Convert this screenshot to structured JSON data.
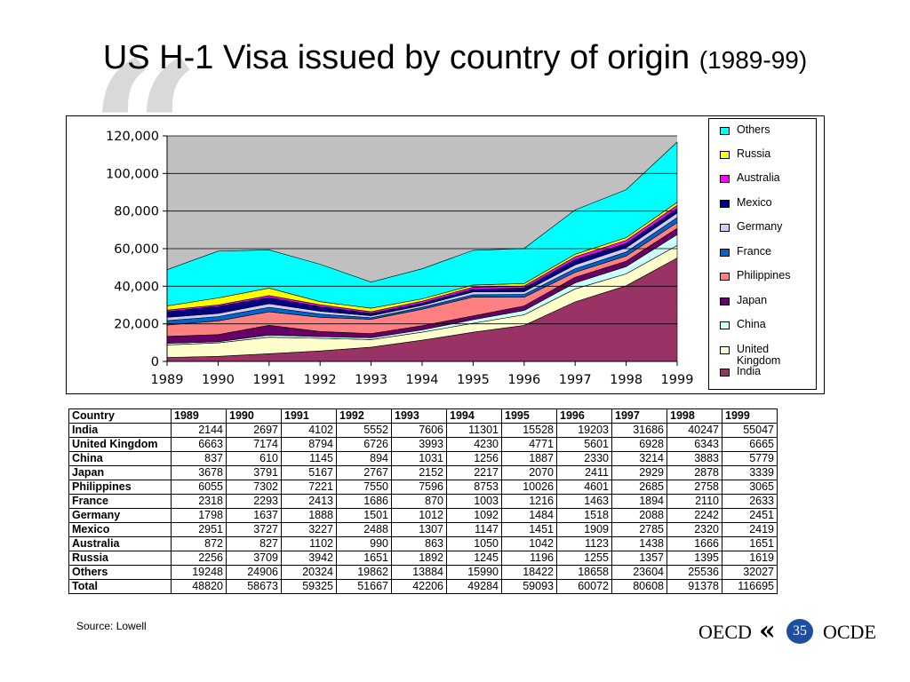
{
  "slide": {
    "title_main": "US H-1 Visa issued by country of origin",
    "title_sub": "(1989-99)",
    "source": "Source: Lowell",
    "logo_left": "OECD",
    "logo_right": "OCDE",
    "page_number": "35"
  },
  "chart_data": {
    "type": "area",
    "stacked": true,
    "x": [
      "1989",
      "1990",
      "1991",
      "1992",
      "1993",
      "1994",
      "1995",
      "1996",
      "1997",
      "1998",
      "1999"
    ],
    "ylim": [
      0,
      120000
    ],
    "yticks": [
      "0",
      "20,000",
      "40,000",
      "60,000",
      "80,000",
      "100,000",
      "120,000"
    ],
    "grid": true,
    "legend_position": "right",
    "series": [
      {
        "name": "India",
        "color": "#993366",
        "values": [
          2144,
          2697,
          4102,
          5552,
          7606,
          11301,
          15528,
          19203,
          31686,
          40247,
          55047
        ]
      },
      {
        "name": "United Kingdom",
        "color": "#ffffcc",
        "values": [
          6663,
          7174,
          8794,
          6726,
          3993,
          4230,
          4771,
          5601,
          6928,
          6343,
          6665
        ]
      },
      {
        "name": "China",
        "color": "#ccffff",
        "values": [
          837,
          610,
          1145,
          894,
          1031,
          1256,
          1887,
          2330,
          3214,
          3883,
          5779
        ]
      },
      {
        "name": "Japan",
        "color": "#660066",
        "values": [
          3678,
          3791,
          5167,
          2767,
          2152,
          2217,
          2070,
          2411,
          2929,
          2878,
          3339
        ]
      },
      {
        "name": "Philippines",
        "color": "#ff8080",
        "values": [
          6055,
          7302,
          7221,
          7550,
          7596,
          8753,
          10026,
          4601,
          2685,
          2758,
          3065
        ]
      },
      {
        "name": "France",
        "color": "#0066cc",
        "values": [
          2318,
          2293,
          2413,
          1686,
          870,
          1003,
          1216,
          1463,
          1894,
          2110,
          2633
        ]
      },
      {
        "name": "Germany",
        "color": "#ccccff",
        "values": [
          1798,
          1637,
          1888,
          1501,
          1012,
          1092,
          1484,
          1518,
          2088,
          2242,
          2451
        ]
      },
      {
        "name": "Mexico",
        "color": "#000080",
        "values": [
          2951,
          3727,
          3227,
          2488,
          1307,
          1147,
          1451,
          1909,
          2785,
          2320,
          2419
        ]
      },
      {
        "name": "Australia",
        "color": "#ff00ff",
        "values": [
          872,
          827,
          1102,
          990,
          863,
          1050,
          1042,
          1123,
          1438,
          1666,
          1651
        ]
      },
      {
        "name": "Russia",
        "color": "#ffff00",
        "values": [
          2256,
          3709,
          3942,
          1651,
          1892,
          1245,
          1196,
          1255,
          1357,
          1395,
          1619
        ]
      },
      {
        "name": "Others",
        "color": "#00ffff",
        "values": [
          19248,
          24906,
          20324,
          19862,
          13884,
          15990,
          18422,
          18658,
          23604,
          25536,
          32027
        ]
      }
    ],
    "plot_background": "#c0c0c0",
    "legend": [
      {
        "label": "Others",
        "color": "#00ffff"
      },
      {
        "label": "Russia",
        "color": "#ffff00"
      },
      {
        "label": "Australia",
        "color": "#ff00ff"
      },
      {
        "label": "Mexico",
        "color": "#000080"
      },
      {
        "label": "Germany",
        "color": "#ccccff"
      },
      {
        "label": "France",
        "color": "#0066cc"
      },
      {
        "label": "Philippines",
        "color": "#ff8080"
      },
      {
        "label": "Japan",
        "color": "#660066"
      },
      {
        "label": "China",
        "color": "#ccffff"
      },
      {
        "label": "United Kingdom",
        "color": "#ffffcc"
      },
      {
        "label": "India",
        "color": "#993366"
      }
    ]
  },
  "table": {
    "headers": [
      "Country",
      "1989",
      "1990",
      "1991",
      "1992",
      "1993",
      "1994",
      "1995",
      "1996",
      "1997",
      "1998",
      "1999"
    ],
    "rows": [
      [
        "India",
        "2144",
        "2697",
        "4102",
        "5552",
        "7606",
        "11301",
        "15528",
        "19203",
        "31686",
        "40247",
        "55047"
      ],
      [
        "United Kingdom",
        "6663",
        "7174",
        "8794",
        "6726",
        "3993",
        "4230",
        "4771",
        "5601",
        "6928",
        "6343",
        "6665"
      ],
      [
        "China",
        "837",
        "610",
        "1145",
        "894",
        "1031",
        "1256",
        "1887",
        "2330",
        "3214",
        "3883",
        "5779"
      ],
      [
        "Japan",
        "3678",
        "3791",
        "5167",
        "2767",
        "2152",
        "2217",
        "2070",
        "2411",
        "2929",
        "2878",
        "3339"
      ],
      [
        "Philippines",
        "6055",
        "7302",
        "7221",
        "7550",
        "7596",
        "8753",
        "10026",
        "4601",
        "2685",
        "2758",
        "3065"
      ],
      [
        "France",
        "2318",
        "2293",
        "2413",
        "1686",
        "870",
        "1003",
        "1216",
        "1463",
        "1894",
        "2110",
        "2633"
      ],
      [
        "Germany",
        "1798",
        "1637",
        "1888",
        "1501",
        "1012",
        "1092",
        "1484",
        "1518",
        "2088",
        "2242",
        "2451"
      ],
      [
        "Mexico",
        "2951",
        "3727",
        "3227",
        "2488",
        "1307",
        "1147",
        "1451",
        "1909",
        "2785",
        "2320",
        "2419"
      ],
      [
        "Australia",
        "872",
        "827",
        "1102",
        "990",
        "863",
        "1050",
        "1042",
        "1123",
        "1438",
        "1666",
        "1651"
      ],
      [
        "Russia",
        "2256",
        "3709",
        "3942",
        "1651",
        "1892",
        "1245",
        "1196",
        "1255",
        "1357",
        "1395",
        "1619"
      ],
      [
        "Others",
        "19248",
        "24906",
        "20324",
        "19862",
        "13884",
        "15990",
        "18422",
        "18658",
        "23604",
        "25536",
        "32027"
      ],
      [
        "Total",
        "48820",
        "58673",
        "59325",
        "51667",
        "42206",
        "49284",
        "59093",
        "60072",
        "80608",
        "91378",
        "116695"
      ]
    ]
  }
}
